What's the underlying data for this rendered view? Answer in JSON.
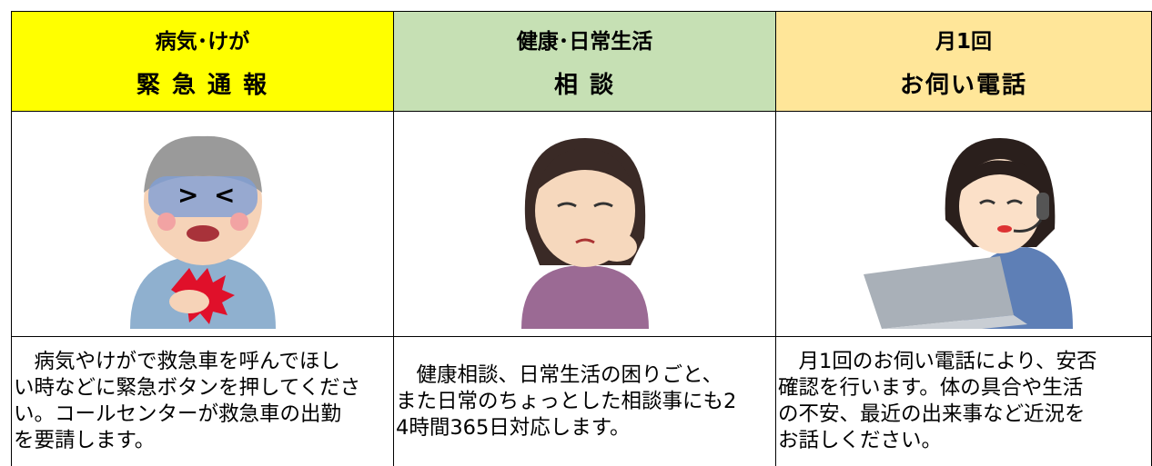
{
  "columns": [
    {
      "header": {
        "line1": "病気･けが",
        "line2": "緊 急 通 報"
      },
      "description": [
        "　病気やけがで救急車を呼んでほし",
        "い時などに緊急ボタンを押してくださ",
        "い。コールセンターが救急車の出勤",
        "を要請します。"
      ]
    },
    {
      "header": {
        "line1": "健康･日常生活",
        "line2": "相 談"
      },
      "description": [
        "　健康相談、日常生活の困りごと、",
        "また日常のちょっとした相談事にも2",
        "4時間365日対応します。"
      ]
    },
    {
      "header": {
        "line1": "月1回",
        "line2": "お伺い電話"
      },
      "description": [
        "　月1回のお伺い電話により、安否",
        "確認を行います。体の具合や生活",
        "の不安、最近の出来事など近況を",
        "お話しください。"
      ]
    }
  ]
}
